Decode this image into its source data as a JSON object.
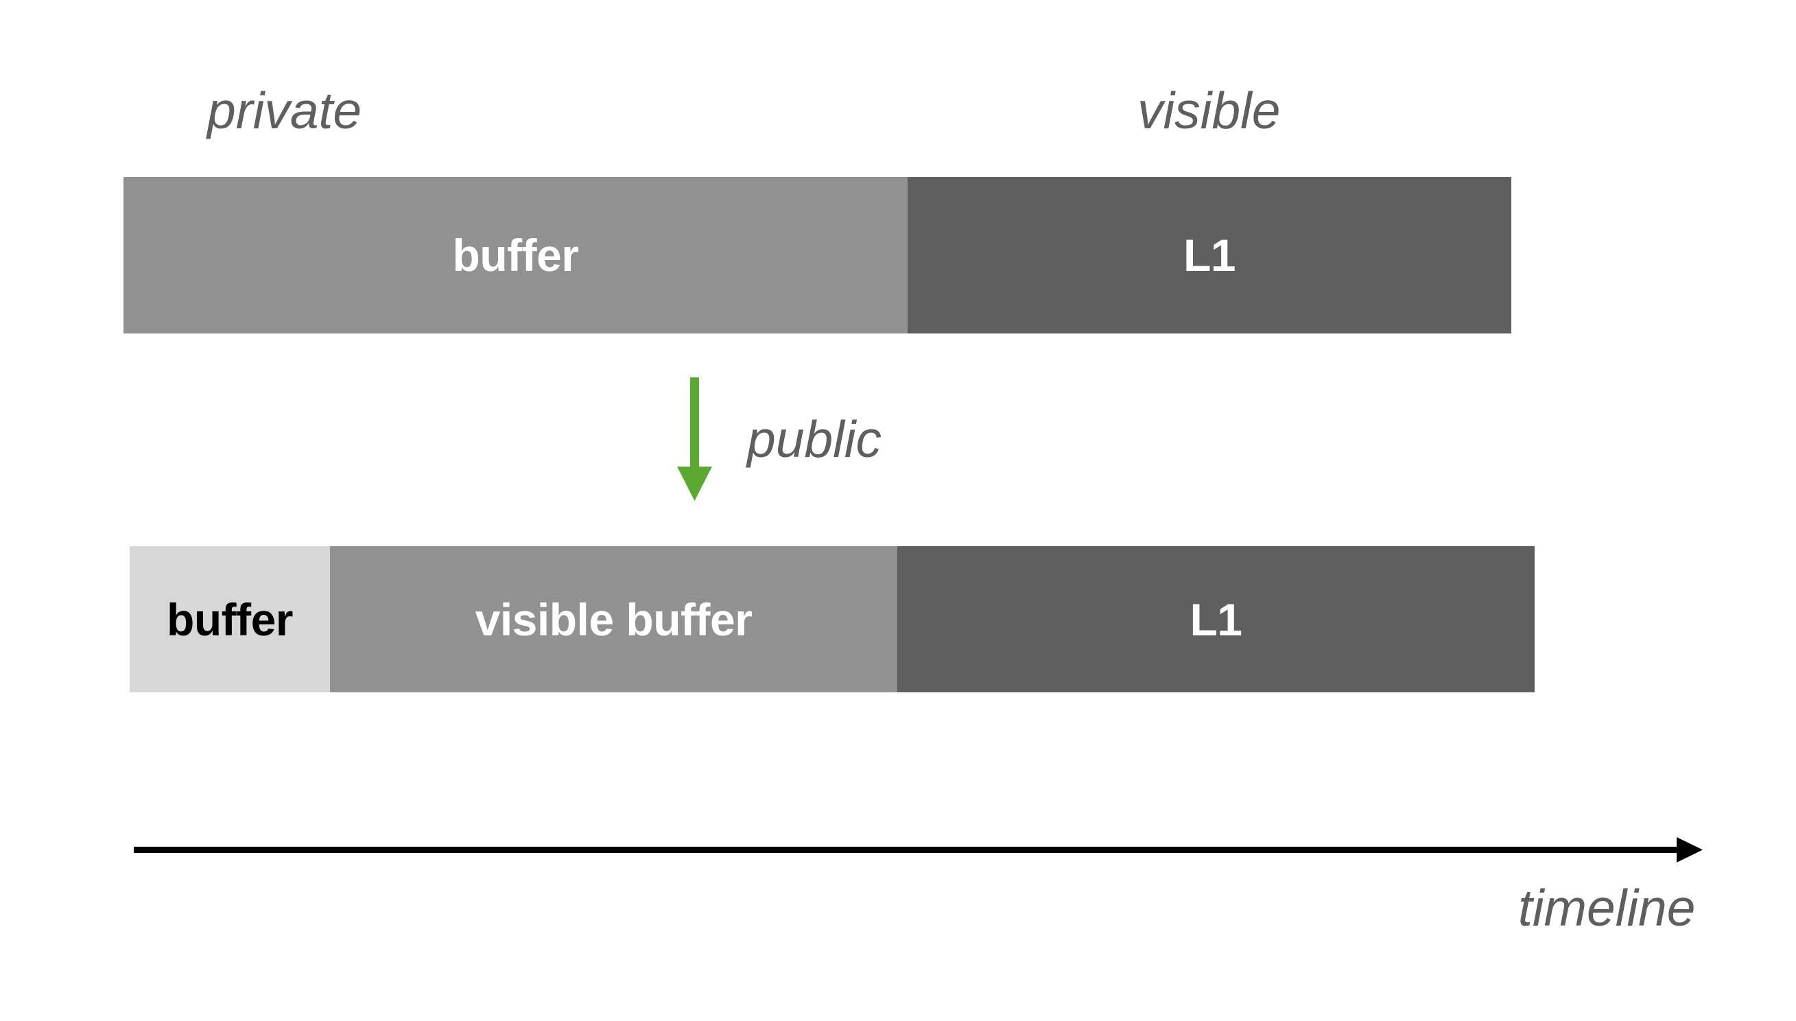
{
  "colors": {
    "buffer_private": "#d7d7d7",
    "buffer": "#919191",
    "l1": "#5f5f5f",
    "label_text": "#5f5f5f",
    "public_arrow": "#5aa832",
    "timeline_arrow": "#000000"
  },
  "top_labels": {
    "left": "private",
    "right": "visible"
  },
  "row_top": {
    "segments": [
      {
        "label": "buffer",
        "kind": "buffer"
      },
      {
        "label": "L1",
        "kind": "l1"
      }
    ]
  },
  "transition": {
    "label": "public",
    "icon": "down-arrow-icon"
  },
  "row_bottom": {
    "segments": [
      {
        "label": "buffer",
        "kind": "buffer_private"
      },
      {
        "label": "visible buffer",
        "kind": "buffer"
      },
      {
        "label": "L1",
        "kind": "l1"
      }
    ]
  },
  "timeline": {
    "label": "timeline",
    "icon": "right-arrow-icon"
  }
}
